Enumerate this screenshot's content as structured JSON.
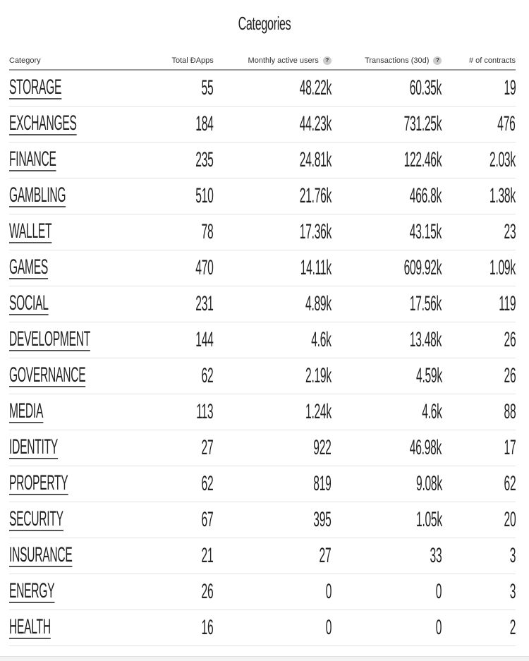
{
  "title": "Categories",
  "headers": {
    "category": "Category",
    "total": "Total ĐApps",
    "mau": "Monthly active users",
    "tx": "Transactions (30d)",
    "contracts": "# of contracts",
    "help_glyph": "?"
  },
  "rows": [
    {
      "category": "STORAGE",
      "total": "55",
      "mau": "48.22k",
      "tx": "60.35k",
      "contracts": "19"
    },
    {
      "category": "EXCHANGES",
      "total": "184",
      "mau": "44.23k",
      "tx": "731.25k",
      "contracts": "476"
    },
    {
      "category": "FINANCE",
      "total": "235",
      "mau": "24.81k",
      "tx": "122.46k",
      "contracts": "2.03k"
    },
    {
      "category": "GAMBLING",
      "total": "510",
      "mau": "21.76k",
      "tx": "466.8k",
      "contracts": "1.38k"
    },
    {
      "category": "WALLET",
      "total": "78",
      "mau": "17.36k",
      "tx": "43.15k",
      "contracts": "23"
    },
    {
      "category": "GAMES",
      "total": "470",
      "mau": "14.11k",
      "tx": "609.92k",
      "contracts": "1.09k"
    },
    {
      "category": "SOCIAL",
      "total": "231",
      "mau": "4.89k",
      "tx": "17.56k",
      "contracts": "119"
    },
    {
      "category": "DEVELOPMENT",
      "total": "144",
      "mau": "4.6k",
      "tx": "13.48k",
      "contracts": "26"
    },
    {
      "category": "GOVERNANCE",
      "total": "62",
      "mau": "2.19k",
      "tx": "4.59k",
      "contracts": "26"
    },
    {
      "category": "MEDIA",
      "total": "113",
      "mau": "1.24k",
      "tx": "4.6k",
      "contracts": "88"
    },
    {
      "category": "IDENTITY",
      "total": "27",
      "mau": "922",
      "tx": "46.98k",
      "contracts": "17"
    },
    {
      "category": "PROPERTY",
      "total": "62",
      "mau": "819",
      "tx": "9.08k",
      "contracts": "62"
    },
    {
      "category": "SECURITY",
      "total": "67",
      "mau": "395",
      "tx": "1.05k",
      "contracts": "20"
    },
    {
      "category": "INSURANCE",
      "total": "21",
      "mau": "27",
      "tx": "33",
      "contracts": "3"
    },
    {
      "category": "ENERGY",
      "total": "26",
      "mau": "0",
      "tx": "0",
      "contracts": "3"
    },
    {
      "category": "HEALTH",
      "total": "16",
      "mau": "0",
      "tx": "0",
      "contracts": "2"
    }
  ]
}
